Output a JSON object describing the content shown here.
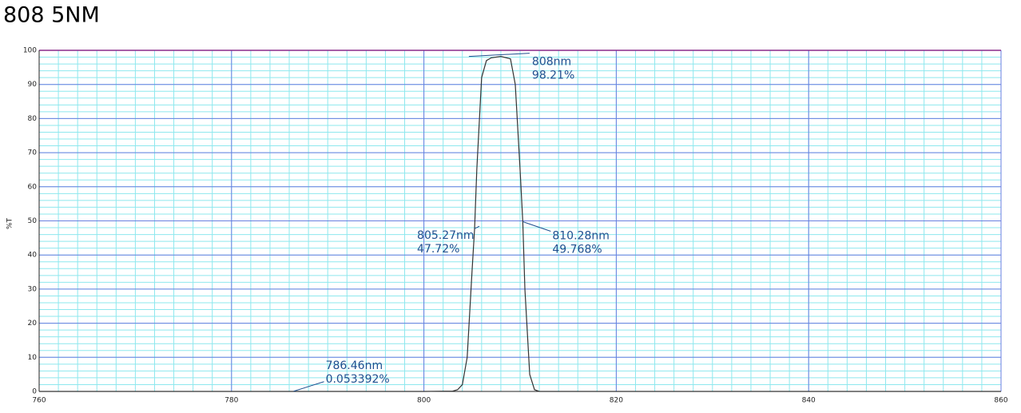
{
  "chart_data": {
    "type": "line",
    "title": "808 5NM",
    "ylabel": "%T",
    "x": [
      760,
      780,
      800,
      803,
      803.5,
      804,
      804.5,
      805,
      805.27,
      805.5,
      806,
      806.5,
      807,
      808,
      809,
      809.5,
      810,
      810.28,
      810.5,
      811,
      811.5,
      812,
      830,
      860
    ],
    "values": [
      0,
      0,
      0,
      0.1,
      0.5,
      2,
      10,
      35,
      47.72,
      65,
      92,
      97,
      97.8,
      98.21,
      97.5,
      90,
      65,
      49.768,
      30,
      5,
      0.5,
      0,
      0,
      0
    ],
    "color": "#333333",
    "xlim": [
      760,
      860
    ],
    "xticks": [
      760,
      780,
      800,
      820,
      840,
      860
    ],
    "ylim": [
      0,
      100
    ],
    "yticks": [
      0,
      10,
      20,
      30,
      40,
      50,
      60,
      70,
      80,
      90,
      100
    ],
    "grid": true,
    "minor_xstep": 2,
    "minor_ystep": 2,
    "annotations": [
      {
        "x": 808,
        "y": 98.21,
        "lines": [
          "808nm",
          "98.21%"
        ]
      },
      {
        "x": 805.27,
        "y": 47.72,
        "lines": [
          "805.27nm",
          "47.72%"
        ]
      },
      {
        "x": 810.28,
        "y": 49.768,
        "lines": [
          "810.28nm",
          "49.768%"
        ]
      },
      {
        "x": 786.46,
        "y": 0.053392,
        "lines": [
          "786.46nm",
          "0.053392%"
        ]
      }
    ]
  }
}
